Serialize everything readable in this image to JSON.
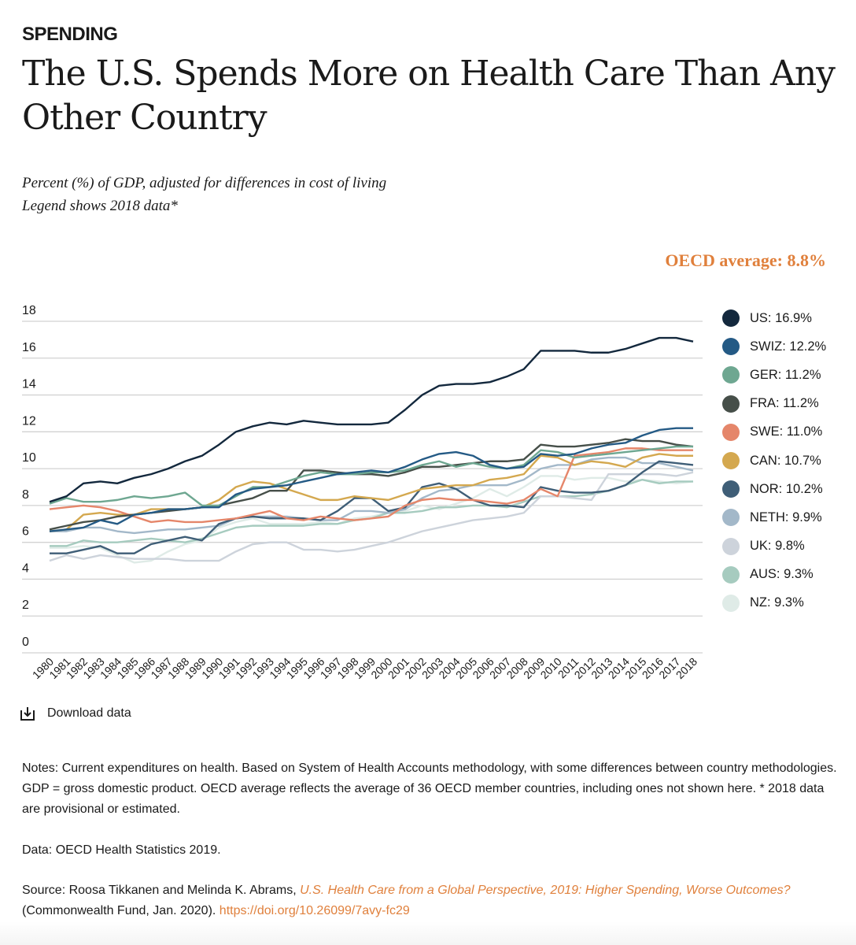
{
  "header": {
    "kicker": "SPENDING",
    "title": "The U.S. Spends More on Health Care Than Any Other Country",
    "subtitle1": "Percent (%) of GDP, adjusted for differences in cost of living",
    "subtitle2": "Legend shows 2018 data*",
    "oecd_average": "OECD average: 8.8%"
  },
  "chart_data": {
    "type": "line",
    "ylim": [
      0,
      18
    ],
    "yticks": [
      "0",
      "2",
      "4",
      "6",
      "8",
      "10",
      "12",
      "14",
      "16",
      "18"
    ],
    "grid": true,
    "legend_position": "right",
    "x": [
      "1980",
      "1981",
      "1982",
      "1983",
      "1984",
      "1985",
      "1986",
      "1987",
      "1988",
      "1989",
      "1990",
      "1991",
      "1992",
      "1993",
      "1994",
      "1995",
      "1996",
      "1997",
      "1998",
      "1999",
      "2000",
      "2001",
      "2002",
      "2003",
      "2004",
      "2005",
      "2006",
      "2007",
      "2008",
      "2009",
      "2010",
      "2011",
      "2012",
      "2013",
      "2014",
      "2015",
      "2016",
      "2017",
      "2018"
    ],
    "series": [
      {
        "name": "US",
        "legend": "US: 16.9%",
        "color": "#13283d",
        "values": [
          8.2,
          8.5,
          9.2,
          9.3,
          9.2,
          9.5,
          9.7,
          10.0,
          10.4,
          10.7,
          11.3,
          12.0,
          12.3,
          12.5,
          12.4,
          12.6,
          12.5,
          12.4,
          12.4,
          12.4,
          12.5,
          13.2,
          14.0,
          14.5,
          14.6,
          14.6,
          14.7,
          15.0,
          15.4,
          16.4,
          16.4,
          16.4,
          16.3,
          16.3,
          16.5,
          16.8,
          17.1,
          17.1,
          16.9
        ]
      },
      {
        "name": "SWIZ",
        "legend": "SWIZ: 12.2%",
        "color": "#245a85",
        "values": [
          6.6,
          6.7,
          6.8,
          7.2,
          7.0,
          7.5,
          7.6,
          7.8,
          7.8,
          7.9,
          7.9,
          8.6,
          8.9,
          9.0,
          9.1,
          9.3,
          9.5,
          9.7,
          9.8,
          9.9,
          9.8,
          10.1,
          10.5,
          10.8,
          10.9,
          10.7,
          10.2,
          10.0,
          10.1,
          10.8,
          10.7,
          10.8,
          11.1,
          11.3,
          11.4,
          11.8,
          12.1,
          12.2,
          12.2
        ]
      },
      {
        "name": "GER",
        "legend": "GER: 11.2%",
        "color": "#6ea791",
        "values": [
          8.1,
          8.4,
          8.2,
          8.2,
          8.3,
          8.5,
          8.4,
          8.5,
          8.7,
          8.0,
          8.0,
          8.5,
          9.0,
          9.0,
          9.3,
          9.6,
          9.8,
          9.7,
          9.7,
          9.8,
          9.8,
          9.9,
          10.2,
          10.4,
          10.1,
          10.3,
          10.1,
          10.0,
          10.2,
          11.0,
          10.9,
          10.6,
          10.7,
          10.8,
          10.9,
          11.0,
          11.1,
          11.2,
          11.2
        ]
      },
      {
        "name": "FRA",
        "legend": "FRA: 11.2%",
        "color": "#464f49",
        "values": [
          6.7,
          6.9,
          7.1,
          7.2,
          7.4,
          7.5,
          7.6,
          7.7,
          7.8,
          7.9,
          8.0,
          8.2,
          8.4,
          8.8,
          8.8,
          9.9,
          9.9,
          9.8,
          9.7,
          9.7,
          9.6,
          9.8,
          10.1,
          10.1,
          10.2,
          10.3,
          10.4,
          10.4,
          10.5,
          11.3,
          11.2,
          11.2,
          11.3,
          11.4,
          11.6,
          11.5,
          11.5,
          11.3,
          11.2
        ]
      },
      {
        "name": "SWE",
        "legend": "SWE: 11.0%",
        "color": "#e5866a",
        "values": [
          7.8,
          7.9,
          8.0,
          7.9,
          7.7,
          7.4,
          7.1,
          7.2,
          7.1,
          7.1,
          7.2,
          7.3,
          7.5,
          7.7,
          7.3,
          7.2,
          7.4,
          7.3,
          7.2,
          7.3,
          7.4,
          8.0,
          8.3,
          8.4,
          8.3,
          8.3,
          8.2,
          8.1,
          8.3,
          8.9,
          8.5,
          10.7,
          10.8,
          10.9,
          11.1,
          11.1,
          11.0,
          11.0,
          11.0
        ]
      },
      {
        "name": "CAN",
        "legend": "CAN: 10.7%",
        "color": "#d4a84f",
        "values": [
          6.6,
          6.7,
          7.5,
          7.6,
          7.5,
          7.5,
          7.8,
          7.8,
          7.8,
          7.9,
          8.3,
          9.0,
          9.3,
          9.2,
          8.9,
          8.6,
          8.3,
          8.3,
          8.5,
          8.4,
          8.3,
          8.6,
          8.9,
          9.0,
          9.1,
          9.1,
          9.4,
          9.5,
          9.7,
          10.7,
          10.6,
          10.2,
          10.4,
          10.3,
          10.1,
          10.6,
          10.8,
          10.7,
          10.7
        ]
      },
      {
        "name": "NOR",
        "legend": "NOR: 10.2%",
        "color": "#3f5e77",
        "values": [
          5.4,
          5.4,
          5.6,
          5.8,
          5.4,
          5.4,
          5.9,
          6.1,
          6.3,
          6.1,
          7.0,
          7.3,
          7.4,
          7.3,
          7.3,
          7.3,
          7.2,
          7.7,
          8.4,
          8.4,
          7.7,
          7.9,
          9.0,
          9.2,
          8.9,
          8.3,
          8.0,
          8.0,
          7.9,
          9.0,
          8.8,
          8.7,
          8.7,
          8.8,
          9.1,
          9.8,
          10.4,
          10.3,
          10.2
        ]
      },
      {
        "name": "NETH",
        "legend": "NETH: 9.9%",
        "color": "#a3b8c9",
        "values": [
          6.6,
          6.6,
          6.8,
          6.8,
          6.6,
          6.5,
          6.6,
          6.7,
          6.7,
          6.8,
          6.9,
          7.3,
          7.4,
          7.4,
          7.4,
          7.3,
          7.2,
          7.2,
          7.7,
          7.7,
          7.6,
          7.8,
          8.4,
          8.8,
          8.9,
          9.1,
          9.1,
          9.1,
          9.4,
          10.0,
          10.2,
          10.2,
          10.5,
          10.6,
          10.6,
          10.3,
          10.3,
          10.1,
          9.9
        ]
      },
      {
        "name": "UK",
        "legend": "UK: 9.8%",
        "color": "#cdd3db",
        "values": [
          5.0,
          5.3,
          5.1,
          5.3,
          5.2,
          5.1,
          5.1,
          5.1,
          5.0,
          5.0,
          5.0,
          5.5,
          5.9,
          6.0,
          6.0,
          5.6,
          5.6,
          5.5,
          5.6,
          5.8,
          6.0,
          6.3,
          6.6,
          6.8,
          7.0,
          7.2,
          7.3,
          7.4,
          7.6,
          8.5,
          8.5,
          8.4,
          8.3,
          9.7,
          9.7,
          9.7,
          9.7,
          9.6,
          9.8
        ]
      },
      {
        "name": "AUS",
        "legend": "AUS: 9.3%",
        "color": "#a6cbbf",
        "values": [
          5.8,
          5.8,
          6.1,
          6.0,
          6.0,
          6.1,
          6.2,
          6.1,
          6.0,
          6.2,
          6.5,
          6.8,
          6.9,
          6.9,
          6.9,
          6.9,
          7.0,
          7.0,
          7.2,
          7.3,
          7.6,
          7.6,
          7.7,
          7.9,
          7.9,
          8.0,
          8.0,
          7.9,
          8.2,
          8.5,
          8.5,
          8.5,
          8.6,
          8.8,
          9.1,
          9.4,
          9.2,
          9.3,
          9.3
        ]
      },
      {
        "name": "NZ",
        "legend": "NZ: 9.3%",
        "color": "#dfebe7",
        "values": [
          5.7,
          5.7,
          5.8,
          5.7,
          5.3,
          4.9,
          5.0,
          5.5,
          5.9,
          6.1,
          6.8,
          7.1,
          7.3,
          7.0,
          7.0,
          7.0,
          7.1,
          7.0,
          7.3,
          7.4,
          7.6,
          7.7,
          8.0,
          7.8,
          8.1,
          8.4,
          8.9,
          8.5,
          9.0,
          9.6,
          9.6,
          9.4,
          9.5,
          9.5,
          9.3,
          9.4,
          9.3,
          9.2,
          9.3
        ]
      }
    ]
  },
  "download": {
    "label": "Download data",
    "icon": "download-icon"
  },
  "notes": "Notes: Current expenditures on health. Based on System of Health Accounts methodology, with some differences between country methodologies. GDP = gross domestic product. OECD average reflects the average of 36 OECD member countries, including ones not shown here. * 2018 data are provisional or estimated.",
  "data_source": "Data: OECD Health Statistics 2019.",
  "source": {
    "prefix": "Source: Roosa Tikkanen and Melinda K. Abrams, ",
    "title": "U.S. Health Care from a Global Perspective, 2019: Higher Spending, Worse Outcomes?",
    "middle": " (Commonwealth Fund, Jan. 2020). ",
    "doi": "https://doi.org/10.26099/7avy-fc29"
  },
  "colors": {
    "accent": "#e0803c"
  }
}
